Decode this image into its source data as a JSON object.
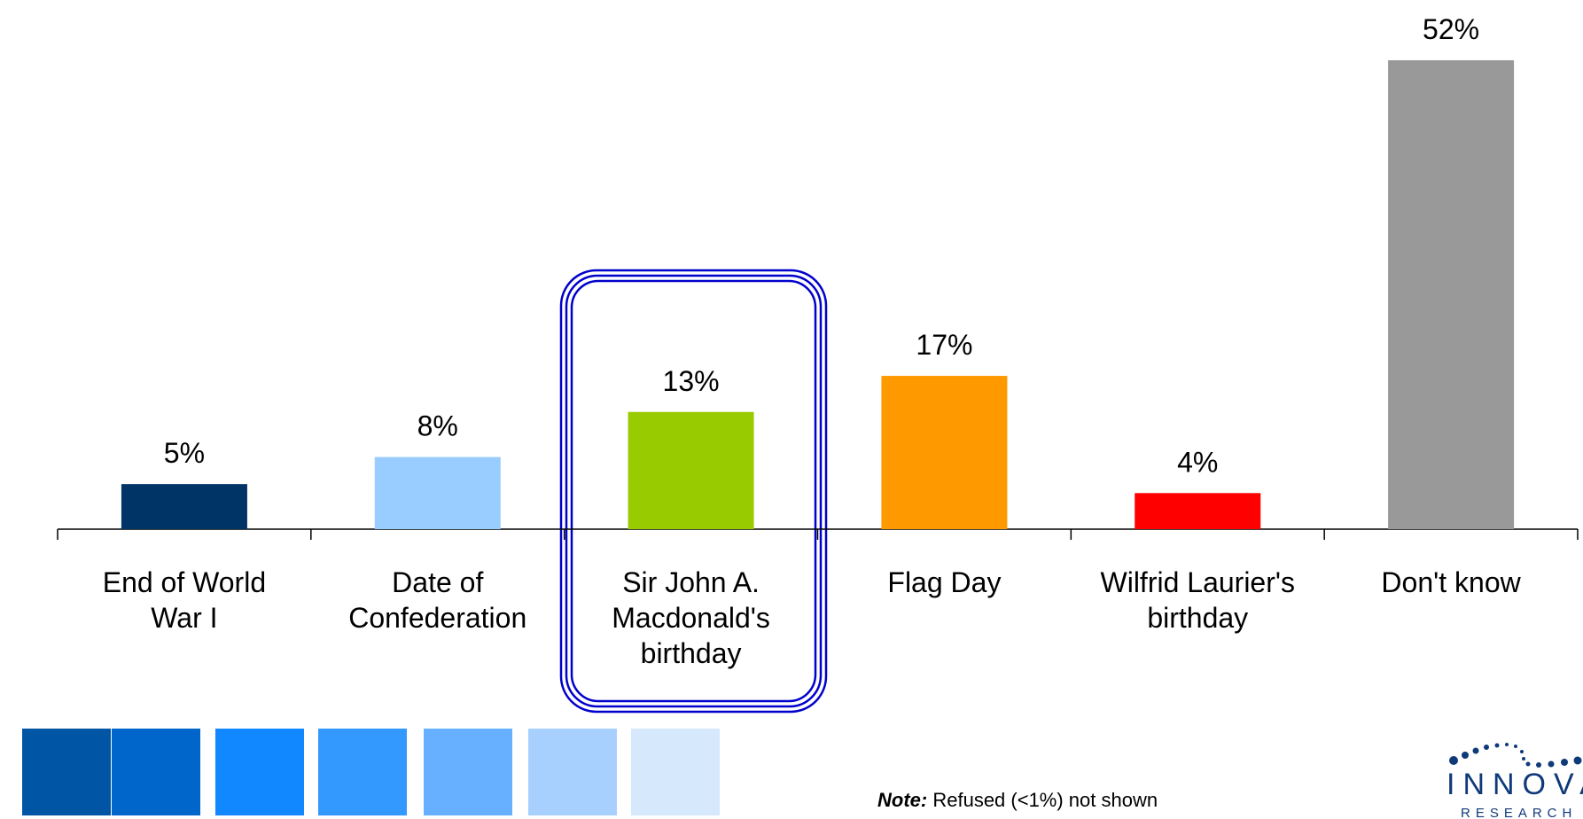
{
  "chart_data": {
    "type": "bar",
    "categories": [
      "End of World War I",
      "Date of Confederation",
      "Sir John A. Macdonald's birthday",
      "Flag Day",
      "Wilfrid Laurier's birthday",
      "Don't know"
    ],
    "values": [
      5,
      8,
      13,
      17,
      4,
      52
    ],
    "value_labels": [
      "5%",
      "8%",
      "13%",
      "17%",
      "4%",
      "52%"
    ],
    "colors": [
      "#003366",
      "#99ccff",
      "#99cc00",
      "#ff9900",
      "#ff0000",
      "#999999"
    ],
    "ylim": [
      0,
      52
    ]
  },
  "note": {
    "label": "Note:",
    "text": "Refused (<1%) not shown"
  },
  "logo": {
    "name": "INNOVATIVE",
    "subname": "RESEARCH GROUP"
  }
}
